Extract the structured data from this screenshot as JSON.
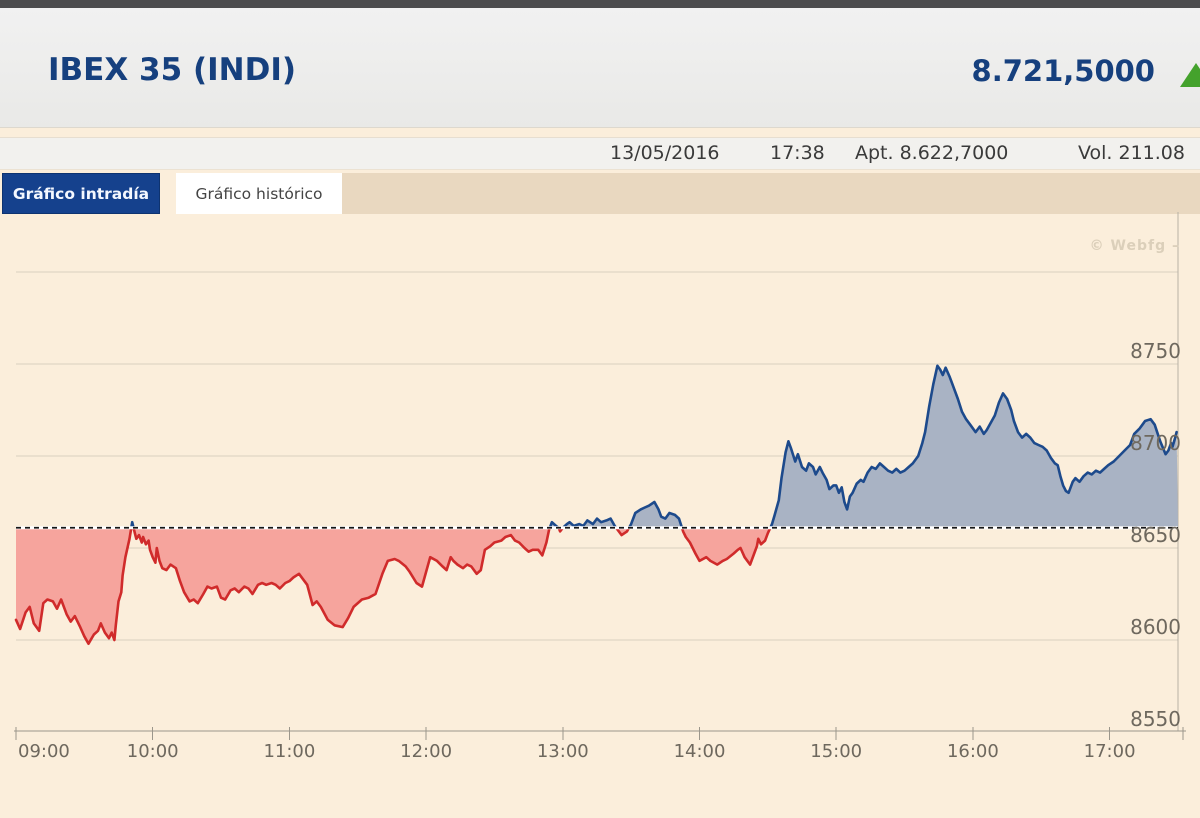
{
  "header": {
    "title": "IBEX 35 (INDI)",
    "price": "8.721,5000",
    "direction_icon": "up-arrow",
    "direction_color": "#44a22c",
    "accent_color": "#16407e"
  },
  "info_bar": {
    "date": "13/05/2016",
    "time": "17:38",
    "open": "Apt. 8.622,7000",
    "volume": "Vol. 211.08"
  },
  "tabs": [
    {
      "label": "Gráfico intradía",
      "active": true
    },
    {
      "label": "Gráfico histórico",
      "active": false
    }
  ],
  "watermark": "© Webfg –",
  "chart_data": {
    "type": "area",
    "title": "IBEX 35 intraday price 13/05/2016",
    "xlabel": "",
    "ylabel": "",
    "x_axis": {
      "tick_labels": [
        "09:00",
        "10:00",
        "11:00",
        "12:00",
        "13:00",
        "14:00",
        "15:00",
        "16:00",
        "17:00"
      ],
      "range_hours": [
        9.0,
        17.49
      ]
    },
    "y_axis": {
      "tick_labels": [
        8750,
        8700,
        8650,
        8600,
        8550
      ],
      "grid_values": [
        8800,
        8750,
        8700,
        8650,
        8600
      ],
      "ylim": [
        8550,
        8750
      ]
    },
    "reference_value": 8661,
    "legend": "none",
    "grid": true,
    "colors": {
      "above_line": "#1d4a8c",
      "above_fill": "#a9b3c4",
      "below_line": "#d02b2b",
      "below_fill": "#f6a49d",
      "reference_dash": "#161616",
      "reference_gap": "#ffffff",
      "grid_line": "#d9d0bf",
      "axis_line": "#9b968b",
      "tick_text": "#6e685e",
      "background": "#fbeedb",
      "watermark": "#dbcfba"
    },
    "series": [
      {
        "name": "IBEX 35",
        "points": [
          [
            9.0,
            8611
          ],
          [
            9.03,
            8606
          ],
          [
            9.07,
            8615
          ],
          [
            9.1,
            8618
          ],
          [
            9.13,
            8609
          ],
          [
            9.17,
            8605
          ],
          [
            9.2,
            8620
          ],
          [
            9.23,
            8622
          ],
          [
            9.27,
            8621
          ],
          [
            9.3,
            8617
          ],
          [
            9.33,
            8622
          ],
          [
            9.37,
            8614
          ],
          [
            9.4,
            8610
          ],
          [
            9.43,
            8613
          ],
          [
            9.47,
            8607
          ],
          [
            9.5,
            8602
          ],
          [
            9.53,
            8598
          ],
          [
            9.57,
            8603
          ],
          [
            9.6,
            8605
          ],
          [
            9.62,
            8609
          ],
          [
            9.65,
            8604
          ],
          [
            9.68,
            8601
          ],
          [
            9.7,
            8604
          ],
          [
            9.72,
            8600
          ],
          [
            9.73,
            8608
          ],
          [
            9.75,
            8621
          ],
          [
            9.77,
            8626
          ],
          [
            9.78,
            8635
          ],
          [
            9.8,
            8645
          ],
          [
            9.83,
            8655
          ],
          [
            9.85,
            8664
          ],
          [
            9.87,
            8658
          ],
          [
            9.88,
            8655
          ],
          [
            9.9,
            8657
          ],
          [
            9.92,
            8653
          ],
          [
            9.93,
            8656
          ],
          [
            9.95,
            8652
          ],
          [
            9.97,
            8654
          ],
          [
            9.98,
            8649
          ],
          [
            10.0,
            8645
          ],
          [
            10.02,
            8642
          ],
          [
            10.03,
            8650
          ],
          [
            10.05,
            8643
          ],
          [
            10.07,
            8639
          ],
          [
            10.1,
            8638
          ],
          [
            10.13,
            8641
          ],
          [
            10.17,
            8639
          ],
          [
            10.2,
            8632
          ],
          [
            10.23,
            8626
          ],
          [
            10.27,
            8621
          ],
          [
            10.3,
            8622
          ],
          [
            10.33,
            8620
          ],
          [
            10.37,
            8625
          ],
          [
            10.4,
            8629
          ],
          [
            10.43,
            8628
          ],
          [
            10.47,
            8629
          ],
          [
            10.5,
            8623
          ],
          [
            10.53,
            8622
          ],
          [
            10.57,
            8627
          ],
          [
            10.6,
            8628
          ],
          [
            10.63,
            8626
          ],
          [
            10.67,
            8629
          ],
          [
            10.7,
            8628
          ],
          [
            10.73,
            8625
          ],
          [
            10.77,
            8630
          ],
          [
            10.8,
            8631
          ],
          [
            10.83,
            8630
          ],
          [
            10.87,
            8631
          ],
          [
            10.9,
            8630
          ],
          [
            10.93,
            8628
          ],
          [
            10.97,
            8631
          ],
          [
            11.0,
            8632
          ],
          [
            11.03,
            8634
          ],
          [
            11.07,
            8636
          ],
          [
            11.1,
            8633
          ],
          [
            11.13,
            8630
          ],
          [
            11.17,
            8619
          ],
          [
            11.2,
            8621
          ],
          [
            11.23,
            8618
          ],
          [
            11.28,
            8611
          ],
          [
            11.33,
            8608
          ],
          [
            11.39,
            8607
          ],
          [
            11.43,
            8612
          ],
          [
            11.47,
            8618
          ],
          [
            11.53,
            8622
          ],
          [
            11.58,
            8623
          ],
          [
            11.63,
            8625
          ],
          [
            11.68,
            8636
          ],
          [
            11.72,
            8643
          ],
          [
            11.77,
            8644
          ],
          [
            11.8,
            8643
          ],
          [
            11.85,
            8640
          ],
          [
            11.88,
            8637
          ],
          [
            11.93,
            8631
          ],
          [
            11.97,
            8629
          ],
          [
            12.0,
            8637
          ],
          [
            12.03,
            8645
          ],
          [
            12.08,
            8643
          ],
          [
            12.12,
            8640
          ],
          [
            12.15,
            8638
          ],
          [
            12.18,
            8645
          ],
          [
            12.2,
            8643
          ],
          [
            12.23,
            8641
          ],
          [
            12.27,
            8639
          ],
          [
            12.3,
            8641
          ],
          [
            12.33,
            8640
          ],
          [
            12.37,
            8636
          ],
          [
            12.4,
            8638
          ],
          [
            12.43,
            8649
          ],
          [
            12.47,
            8651
          ],
          [
            12.5,
            8653
          ],
          [
            12.55,
            8654
          ],
          [
            12.58,
            8656
          ],
          [
            12.62,
            8657
          ],
          [
            12.65,
            8654
          ],
          [
            12.68,
            8653
          ],
          [
            12.72,
            8650
          ],
          [
            12.75,
            8648
          ],
          [
            12.78,
            8649
          ],
          [
            12.82,
            8649
          ],
          [
            12.85,
            8646
          ],
          [
            12.88,
            8653
          ],
          [
            12.9,
            8660
          ],
          [
            12.92,
            8664
          ],
          [
            12.95,
            8662
          ],
          [
            12.97,
            8661
          ],
          [
            12.98,
            8659
          ],
          [
            13.0,
            8661
          ],
          [
            13.03,
            8663
          ],
          [
            13.05,
            8664
          ],
          [
            13.08,
            8662
          ],
          [
            13.12,
            8663
          ],
          [
            13.15,
            8662
          ],
          [
            13.18,
            8665
          ],
          [
            13.22,
            8663
          ],
          [
            13.25,
            8666
          ],
          [
            13.28,
            8664
          ],
          [
            13.32,
            8665
          ],
          [
            13.35,
            8666
          ],
          [
            13.38,
            8662
          ],
          [
            13.4,
            8660
          ],
          [
            13.43,
            8657
          ],
          [
            13.47,
            8659
          ],
          [
            13.5,
            8663
          ],
          [
            13.53,
            8669
          ],
          [
            13.57,
            8671
          ],
          [
            13.6,
            8672
          ],
          [
            13.63,
            8673
          ],
          [
            13.67,
            8675
          ],
          [
            13.7,
            8671
          ],
          [
            13.72,
            8667
          ],
          [
            13.75,
            8666
          ],
          [
            13.78,
            8669
          ],
          [
            13.82,
            8668
          ],
          [
            13.85,
            8666
          ],
          [
            13.88,
            8659
          ],
          [
            13.9,
            8656
          ],
          [
            13.93,
            8653
          ],
          [
            13.97,
            8647
          ],
          [
            14.0,
            8643
          ],
          [
            14.05,
            8645
          ],
          [
            14.08,
            8643
          ],
          [
            14.13,
            8641
          ],
          [
            14.17,
            8643
          ],
          [
            14.2,
            8644
          ],
          [
            14.25,
            8647
          ],
          [
            14.28,
            8649
          ],
          [
            14.3,
            8650
          ],
          [
            14.33,
            8645
          ],
          [
            14.37,
            8641
          ],
          [
            14.4,
            8647
          ],
          [
            14.42,
            8651
          ],
          [
            14.43,
            8655
          ],
          [
            14.45,
            8652
          ],
          [
            14.48,
            8654
          ],
          [
            14.5,
            8658
          ],
          [
            14.53,
            8663
          ],
          [
            14.55,
            8668
          ],
          [
            14.58,
            8676
          ],
          [
            14.6,
            8688
          ],
          [
            14.63,
            8702
          ],
          [
            14.65,
            8708
          ],
          [
            14.67,
            8704
          ],
          [
            14.7,
            8697
          ],
          [
            14.72,
            8701
          ],
          [
            14.75,
            8694
          ],
          [
            14.78,
            8692
          ],
          [
            14.8,
            8696
          ],
          [
            14.83,
            8694
          ],
          [
            14.85,
            8690
          ],
          [
            14.88,
            8694
          ],
          [
            14.9,
            8691
          ],
          [
            14.93,
            8687
          ],
          [
            14.95,
            8682
          ],
          [
            14.98,
            8684
          ],
          [
            15.0,
            8684
          ],
          [
            15.02,
            8680
          ],
          [
            15.04,
            8683
          ],
          [
            15.06,
            8675
          ],
          [
            15.08,
            8671
          ],
          [
            15.1,
            8678
          ],
          [
            15.12,
            8680
          ],
          [
            15.15,
            8685
          ],
          [
            15.18,
            8687
          ],
          [
            15.2,
            8686
          ],
          [
            15.23,
            8691
          ],
          [
            15.26,
            8694
          ],
          [
            15.29,
            8693
          ],
          [
            15.32,
            8696
          ],
          [
            15.35,
            8694
          ],
          [
            15.38,
            8692
          ],
          [
            15.41,
            8691
          ],
          [
            15.44,
            8693
          ],
          [
            15.47,
            8691
          ],
          [
            15.5,
            8692
          ],
          [
            15.53,
            8694
          ],
          [
            15.56,
            8696
          ],
          [
            15.6,
            8700
          ],
          [
            15.63,
            8707
          ],
          [
            15.65,
            8713
          ],
          [
            15.68,
            8727
          ],
          [
            15.71,
            8739
          ],
          [
            15.74,
            8749
          ],
          [
            15.76,
            8747
          ],
          [
            15.78,
            8744
          ],
          [
            15.8,
            8748
          ],
          [
            15.83,
            8743
          ],
          [
            15.86,
            8737
          ],
          [
            15.89,
            8731
          ],
          [
            15.92,
            8724
          ],
          [
            15.95,
            8720
          ],
          [
            15.98,
            8717
          ],
          [
            16.02,
            8713
          ],
          [
            16.05,
            8716
          ],
          [
            16.08,
            8712
          ],
          [
            16.1,
            8714
          ],
          [
            16.13,
            8718
          ],
          [
            16.16,
            8722
          ],
          [
            16.19,
            8729
          ],
          [
            16.22,
            8734
          ],
          [
            16.25,
            8731
          ],
          [
            16.28,
            8725
          ],
          [
            16.3,
            8719
          ],
          [
            16.33,
            8713
          ],
          [
            16.36,
            8710
          ],
          [
            16.39,
            8712
          ],
          [
            16.42,
            8710
          ],
          [
            16.45,
            8707
          ],
          [
            16.48,
            8706
          ],
          [
            16.51,
            8705
          ],
          [
            16.54,
            8703
          ],
          [
            16.57,
            8699
          ],
          [
            16.6,
            8696
          ],
          [
            16.62,
            8695
          ],
          [
            16.64,
            8689
          ],
          [
            16.66,
            8684
          ],
          [
            16.68,
            8681
          ],
          [
            16.7,
            8680
          ],
          [
            16.73,
            8686
          ],
          [
            16.75,
            8688
          ],
          [
            16.78,
            8686
          ],
          [
            16.81,
            8689
          ],
          [
            16.84,
            8691
          ],
          [
            16.87,
            8690
          ],
          [
            16.9,
            8692
          ],
          [
            16.93,
            8691
          ],
          [
            16.96,
            8693
          ],
          [
            16.99,
            8695
          ],
          [
            17.03,
            8697
          ],
          [
            17.07,
            8700
          ],
          [
            17.11,
            8703
          ],
          [
            17.15,
            8706
          ],
          [
            17.18,
            8712
          ],
          [
            17.22,
            8715
          ],
          [
            17.26,
            8719
          ],
          [
            17.3,
            8720
          ],
          [
            17.33,
            8717
          ],
          [
            17.37,
            8708
          ],
          [
            17.41,
            8701
          ],
          [
            17.43,
            8703
          ],
          [
            17.45,
            8707
          ],
          [
            17.46,
            8705
          ],
          [
            17.48,
            8710
          ],
          [
            17.49,
            8713
          ]
        ]
      }
    ]
  }
}
